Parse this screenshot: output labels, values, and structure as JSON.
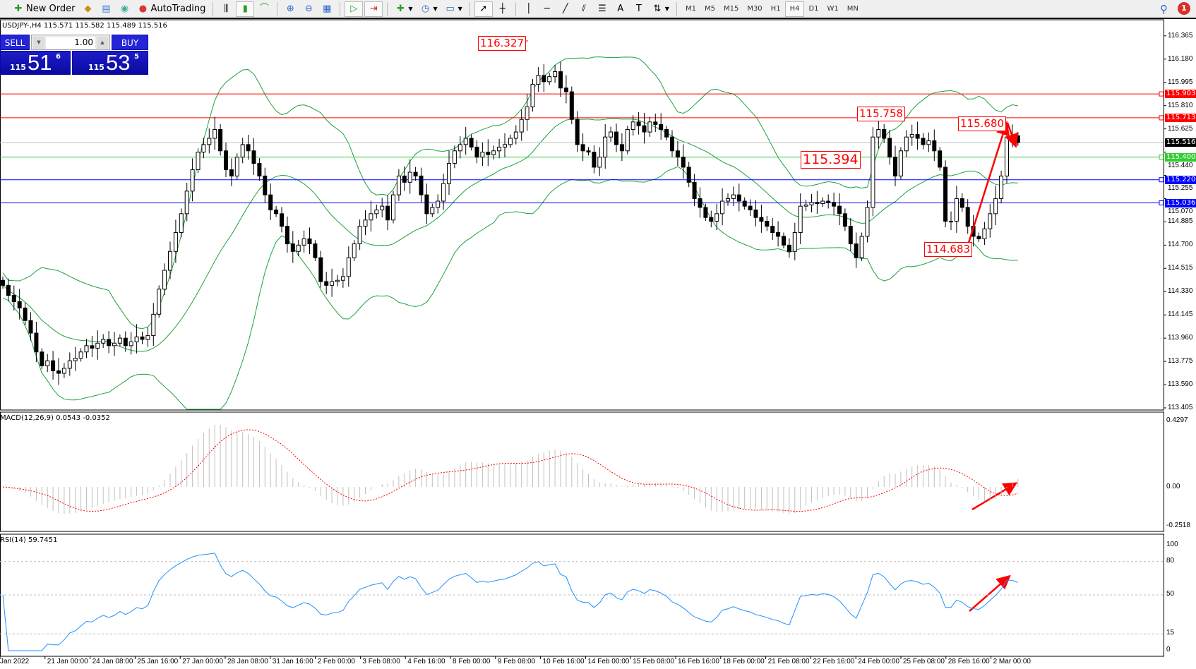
{
  "toolbar": {
    "new_order": "New Order",
    "autotrading": "AutoTrading",
    "timeframes": [
      "M1",
      "M5",
      "M15",
      "M30",
      "H1",
      "H4",
      "D1",
      "W1",
      "MN"
    ],
    "active_timeframe": "H4",
    "notifications": "1"
  },
  "symbol_info": "USDJPY-,H4  115.571 115.582 115.489 115.516",
  "one_click": {
    "sell": "SELL",
    "buy": "BUY",
    "lots": "1.00",
    "bid": {
      "big": "115",
      "main": "51",
      "frac": "6"
    },
    "ask": {
      "big": "115",
      "main": "53",
      "frac": "5"
    }
  },
  "colors": {
    "bull_bear": "#000000",
    "bands": "#1aa33a",
    "macd_hist": "#c0c0c0",
    "macd_signal": "#ff0000",
    "rsi": "#1e90ff",
    "sell_blue": "#2424d8"
  },
  "chart_data": {
    "type": "candlestick",
    "price_axis": [
      "116.365",
      "116.180",
      "115.995",
      "115.810",
      "115.625",
      "115.440",
      "115.255",
      "115.070",
      "114.885",
      "114.700",
      "114.515",
      "114.330",
      "114.145",
      "113.960",
      "113.775",
      "113.590",
      "113.405"
    ],
    "ylim": [
      113.405,
      116.365
    ],
    "time_axis": [
      "Jan 2022",
      "21 Jan 00:00",
      "24 Jan 08:00",
      "25 Jan 16:00",
      "27 Jan 00:00",
      "28 Jan 08:00",
      "31 Jan 16:00",
      "2 Feb 00:00",
      "3 Feb 08:00",
      "4 Feb 16:00",
      "8 Feb 00:00",
      "9 Feb 08:00",
      "10 Feb 16:00",
      "14 Feb 00:00",
      "15 Feb 08:00",
      "16 Feb 16:00",
      "18 Feb 00:00",
      "21 Feb 08:00",
      "22 Feb 16:00",
      "24 Feb 00:00",
      "25 Feb 08:00",
      "28 Feb 16:00",
      "2 Mar 00:00"
    ],
    "close": [
      114.38,
      114.3,
      114.25,
      114.2,
      114.1,
      114.0,
      113.85,
      113.74,
      113.78,
      113.7,
      113.68,
      113.72,
      113.78,
      113.8,
      113.85,
      113.9,
      113.88,
      113.92,
      113.95,
      113.9,
      113.92,
      113.96,
      113.9,
      113.93,
      113.97,
      113.95,
      113.98,
      114.15,
      114.35,
      114.5,
      114.65,
      114.8,
      114.95,
      115.13,
      115.3,
      115.44,
      115.5,
      115.55,
      115.62,
      115.45,
      115.3,
      115.25,
      115.4,
      115.5,
      115.45,
      115.35,
      115.25,
      115.1,
      114.98,
      114.95,
      114.85,
      114.71,
      114.65,
      114.7,
      114.75,
      114.71,
      114.6,
      114.41,
      114.38,
      114.41,
      114.42,
      114.45,
      114.6,
      114.71,
      114.85,
      114.9,
      114.95,
      114.98,
      115.01,
      114.9,
      115.1,
      115.25,
      115.2,
      115.28,
      115.25,
      115.1,
      114.95,
      115.0,
      115.05,
      115.19,
      115.35,
      115.45,
      115.5,
      115.55,
      115.48,
      115.4,
      115.44,
      115.42,
      115.45,
      115.48,
      115.5,
      115.55,
      115.6,
      115.7,
      115.8,
      115.98,
      116.05,
      116.0,
      116.04,
      116.08,
      115.95,
      115.92,
      115.7,
      115.5,
      115.45,
      115.44,
      115.32,
      115.4,
      115.56,
      115.6,
      115.5,
      115.45,
      115.62,
      115.68,
      115.65,
      115.6,
      115.68,
      115.66,
      115.62,
      115.56,
      115.45,
      115.4,
      115.32,
      115.2,
      115.07,
      115.0,
      114.92,
      114.89,
      114.95,
      115.05,
      115.07,
      115.1,
      115.05,
      115.01,
      114.98,
      114.92,
      114.89,
      114.85,
      114.8,
      114.77,
      114.7,
      114.65,
      114.8,
      115.01,
      115.02,
      115.04,
      115.03,
      115.05,
      115.04,
      115.01,
      114.95,
      114.85,
      114.71,
      114.6,
      114.77,
      115.0,
      115.56,
      115.62,
      115.55,
      115.4,
      115.25,
      115.45,
      115.56,
      115.58,
      115.55,
      115.5,
      115.53,
      115.45,
      115.32,
      114.89,
      114.89,
      115.07,
      115.0,
      114.85,
      114.77,
      114.75,
      114.83,
      114.95,
      115.07,
      115.25,
      115.56,
      115.57,
      115.516
    ],
    "levels": [
      {
        "price": "115.903",
        "color": "#ff0000"
      },
      {
        "price": "115.713",
        "color": "#ff0000"
      },
      {
        "price": "115.516",
        "color": "#000000"
      },
      {
        "price": "115.400",
        "color": "#33cc33"
      },
      {
        "price": "115.220",
        "color": "#0000ff"
      },
      {
        "price": "115.036",
        "color": "#0000ff"
      }
    ],
    "annotations": [
      "116.327",
      "115.758",
      "115.394",
      "115.680",
      "114.683"
    ],
    "macd": {
      "title": "MACD(12,26,9) 0.0543 -0.0352",
      "axis": [
        "0.4297",
        "0.00",
        "-0.2518"
      ]
    },
    "rsi": {
      "title": "RSI(14) 59.7451",
      "axis": [
        "100",
        "80",
        "50",
        "15",
        "0"
      ],
      "levels": [
        80,
        50,
        15
      ]
    }
  }
}
